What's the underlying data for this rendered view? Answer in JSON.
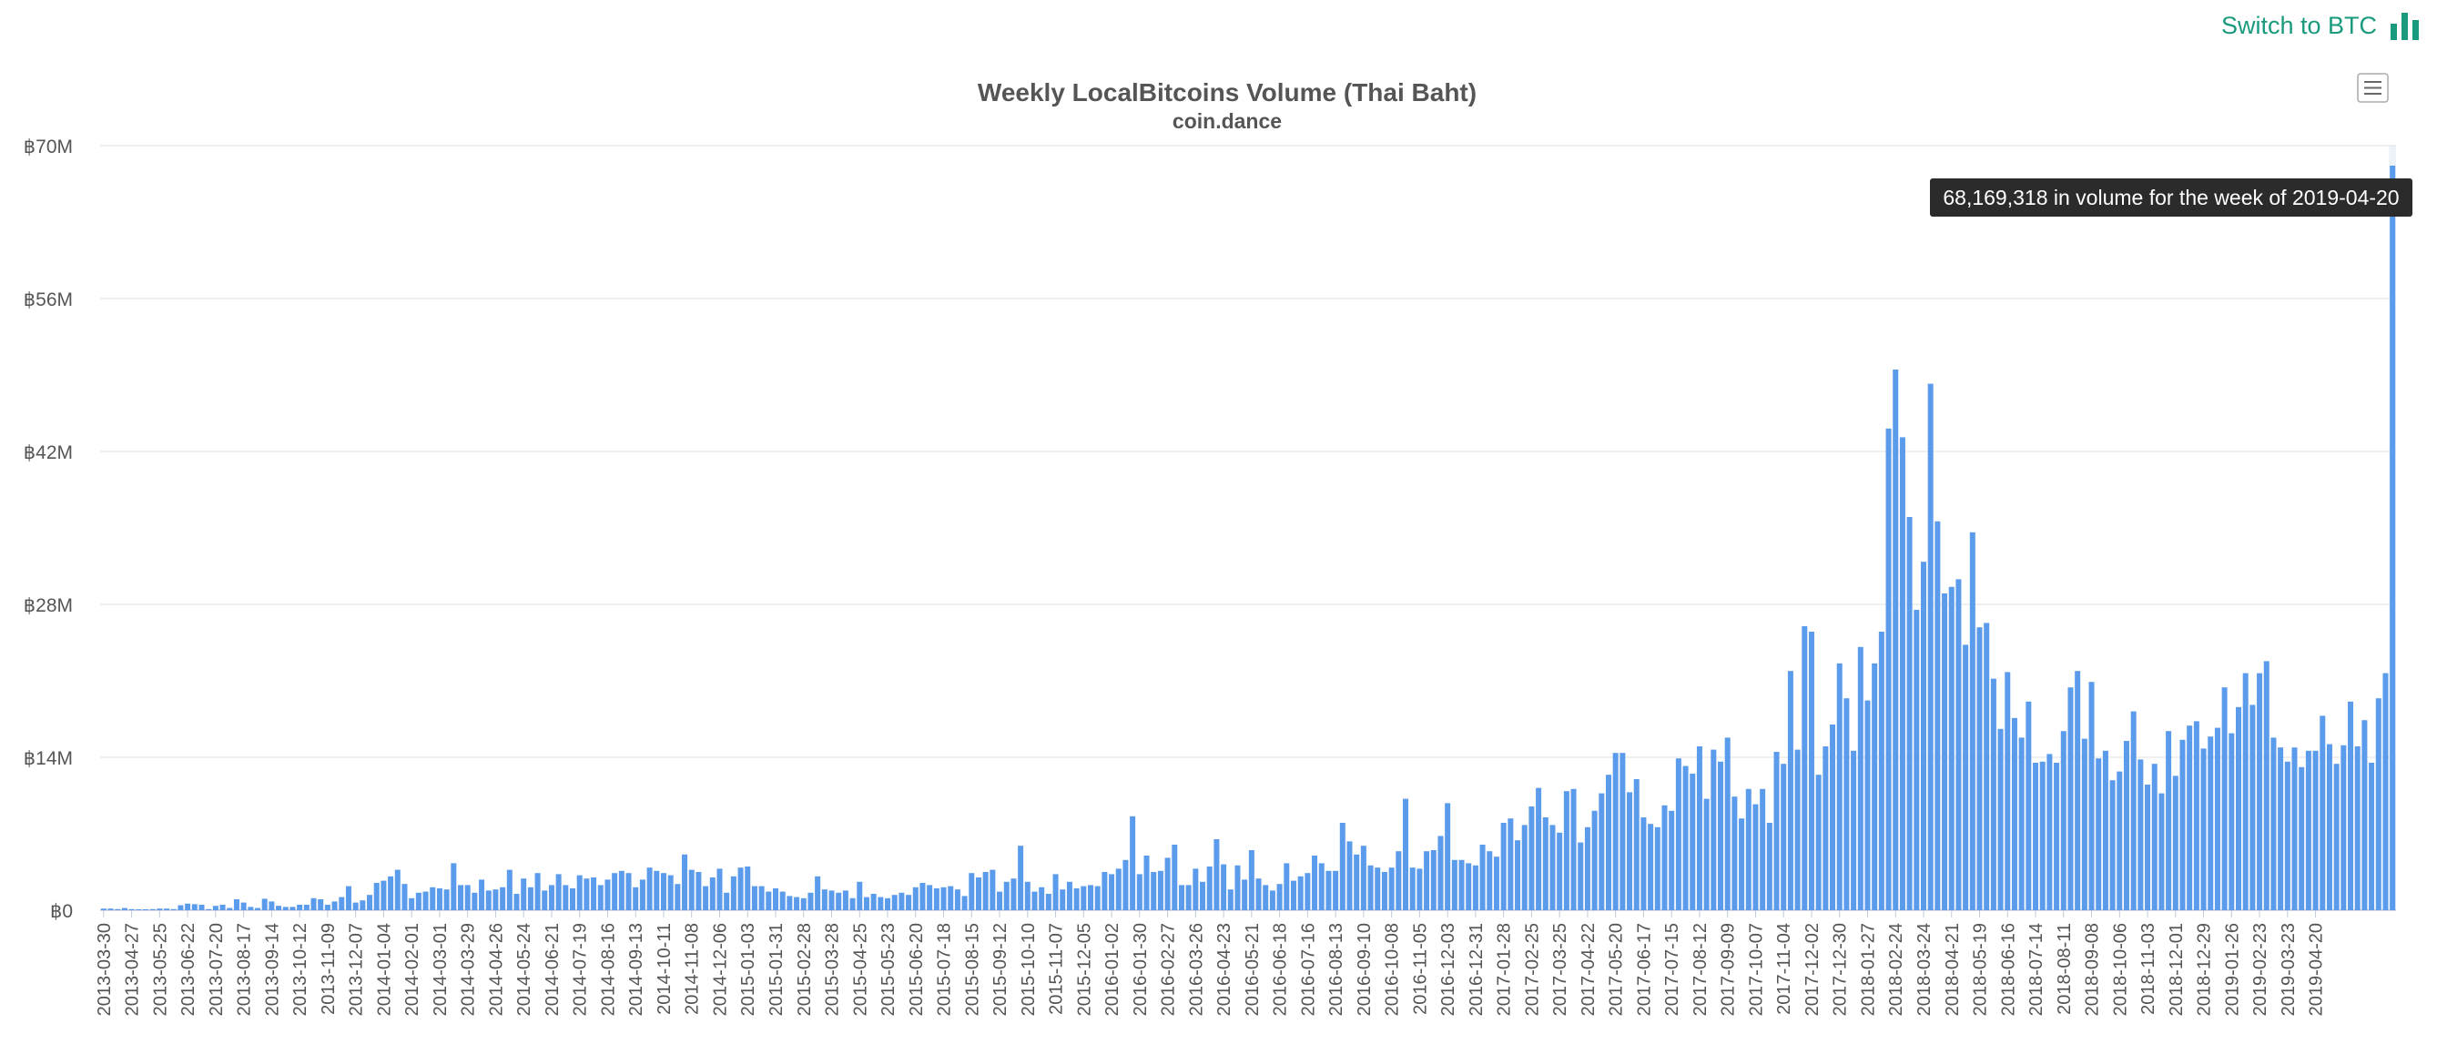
{
  "switch_label": "Switch to BTC",
  "accent_color": "#1a9a7d",
  "bar_color": "#5b9bec",
  "icons": {
    "switch": "bar-chart-icon",
    "menu": "hamburger-menu-icon"
  },
  "tooltip": {
    "text": "68,169,318 in volume for the week of 2019-04-20"
  },
  "chart_data": {
    "type": "bar",
    "title": "Weekly LocalBitcoins Volume (Thai Baht)",
    "subtitle": "coin.dance",
    "ylim": [
      0,
      70000000
    ],
    "yticks": [
      {
        "value": 0,
        "label": "฿0"
      },
      {
        "value": 14000000,
        "label": "฿14M"
      },
      {
        "value": 28000000,
        "label": "฿28M"
      },
      {
        "value": 42000000,
        "label": "฿42M"
      },
      {
        "value": 56000000,
        "label": "฿56M"
      },
      {
        "value": 70000000,
        "label": "฿70M"
      }
    ],
    "grid": true,
    "legend": false,
    "start_week": "2013-03-30",
    "end_week": "2019-04-20",
    "x_tick_labels": [
      "2013-03-30",
      "2013-04-27",
      "2013-05-25",
      "2013-06-22",
      "2013-07-20",
      "2013-08-17",
      "2013-09-14",
      "2013-10-12",
      "2013-11-09",
      "2013-12-07",
      "2014-01-04",
      "2014-02-01",
      "2014-03-01",
      "2014-03-29",
      "2014-04-26",
      "2014-05-24",
      "2014-06-21",
      "2014-07-19",
      "2014-08-16",
      "2014-09-13",
      "2014-10-11",
      "2014-11-08",
      "2014-12-06",
      "2015-01-03",
      "2015-01-31",
      "2015-02-28",
      "2015-03-28",
      "2015-04-25",
      "2015-05-23",
      "2015-06-20",
      "2015-07-18",
      "2015-08-15",
      "2015-09-12",
      "2015-10-10",
      "2015-11-07",
      "2015-12-05",
      "2016-01-02",
      "2016-01-30",
      "2016-02-27",
      "2016-03-26",
      "2016-04-23",
      "2016-05-21",
      "2016-06-18",
      "2016-07-16",
      "2016-08-13",
      "2016-09-10",
      "2016-10-08",
      "2016-11-05",
      "2016-12-03",
      "2016-12-31",
      "2017-01-28",
      "2017-02-25",
      "2017-03-25",
      "2017-04-22",
      "2017-05-20",
      "2017-06-17",
      "2017-07-15",
      "2017-08-12",
      "2017-09-09",
      "2017-10-07",
      "2017-11-04",
      "2017-12-02",
      "2017-12-30",
      "2018-01-27",
      "2018-02-24",
      "2018-03-24",
      "2018-04-21",
      "2018-05-19",
      "2018-06-16",
      "2018-07-14",
      "2018-08-11",
      "2018-09-08",
      "2018-10-06",
      "2018-11-03",
      "2018-12-01",
      "2018-12-29",
      "2019-01-26",
      "2019-02-23",
      "2019-03-23",
      "2019-04-20"
    ],
    "values": [
      150000,
      150000,
      100000,
      200000,
      100000,
      50000,
      50000,
      100000,
      150000,
      150000,
      100000,
      450000,
      600000,
      550000,
      500000,
      100000,
      400000,
      500000,
      200000,
      1000000,
      700000,
      300000,
      200000,
      1050000,
      800000,
      400000,
      300000,
      300000,
      500000,
      500000,
      1100000,
      1000000,
      500000,
      800000,
      1200000,
      2200000,
      700000,
      900000,
      1400000,
      2500000,
      2700000,
      3100000,
      3700000,
      2400000,
      1100000,
      1600000,
      1700000,
      2100000,
      2000000,
      1900000,
      4300000,
      2300000,
      2300000,
      1600000,
      2800000,
      1800000,
      1900000,
      2100000,
      3700000,
      1500000,
      2900000,
      2100000,
      3400000,
      1800000,
      2300000,
      3300000,
      2300000,
      2000000,
      3200000,
      2900000,
      3000000,
      2300000,
      2800000,
      3400000,
      3600000,
      3400000,
      2100000,
      2800000,
      3900000,
      3600000,
      3400000,
      3200000,
      2400000,
      5100000,
      3700000,
      3500000,
      2200000,
      3000000,
      3800000,
      1600000,
      3100000,
      3900000,
      4000000,
      2200000,
      2200000,
      1700000,
      2000000,
      1700000,
      1300000,
      1200000,
      1100000,
      1600000,
      3100000,
      1900000,
      1800000,
      1600000,
      1800000,
      1100000,
      2600000,
      1200000,
      1500000,
      1200000,
      1100000,
      1400000,
      1600000,
      1400000,
      2100000,
      2500000,
      2300000,
      2000000,
      2100000,
      2200000,
      1900000,
      1300000,
      3400000,
      3000000,
      3500000,
      3700000,
      1700000,
      2600000,
      2900000,
      5900000,
      2600000,
      1700000,
      2100000,
      1500000,
      3300000,
      1900000,
      2600000,
      2000000,
      2200000,
      2300000,
      2200000,
      3500000,
      3300000,
      3800000,
      4600000,
      8600000,
      3300000,
      5000000,
      3500000,
      3600000,
      4800000,
      6000000,
      2300000,
      2300000,
      3800000,
      2600000,
      4000000,
      6500000,
      4200000,
      1900000,
      4100000,
      2800000,
      5500000,
      2900000,
      2300000,
      1800000,
      2400000,
      4300000,
      2700000,
      3100000,
      3400000,
      5000000,
      4300000,
      3600000,
      3600000,
      8000000,
      6300000,
      5100000,
      5900000,
      4100000,
      3900000,
      3500000,
      3900000,
      5400000,
      10200000,
      3900000,
      3800000,
      5400000,
      5500000,
      6800000,
      9800000,
      4600000,
      4600000,
      4300000,
      4100000,
      6000000,
      5400000,
      4900000,
      8000000,
      8400000,
      6400000,
      7800000,
      9500000,
      11200000,
      8500000,
      7800000,
      7100000,
      10900000,
      11100000,
      6200000,
      7600000,
      9100000,
      10700000,
      12400000,
      14400000,
      14400000,
      10800000,
      12000000,
      8500000,
      7900000,
      7600000,
      9600000,
      9100000,
      13900000,
      13200000,
      12500000,
      15000000,
      10200000,
      14700000,
      13600000,
      15800000,
      10400000,
      8400000,
      11100000,
      9700000,
      11100000,
      8000000,
      14500000,
      13400000,
      21900000,
      14700000,
      26000000,
      25500000,
      12400000,
      15000000,
      17000000,
      22600000,
      19400000,
      14600000,
      24100000,
      19200000,
      22600000,
      25500000,
      44100000,
      49500000,
      43300000,
      36000000,
      27500000,
      31900000,
      48200000,
      35600000,
      29000000,
      29600000,
      30300000,
      24300000,
      34600000,
      25900000,
      26300000,
      21200000,
      16600000,
      21800000,
      17600000,
      15800000,
      19100000,
      13500000,
      13600000,
      14300000,
      13500000,
      16400000,
      20400000,
      21900000,
      15700000,
      20900000,
      13900000,
      14600000,
      11900000,
      12700000,
      15500000,
      18200000,
      13800000,
      11500000,
      13400000,
      10700000,
      16400000,
      12300000,
      15600000,
      16900000,
      17300000,
      14800000,
      15900000,
      16700000,
      20400000,
      16200000,
      18600000,
      21700000,
      18800000,
      21700000,
      22800000,
      15800000,
      14900000,
      13600000,
      14900000,
      13100000,
      14600000,
      14600000,
      17800000,
      15200000,
      13400000,
      15100000,
      19100000,
      15000000,
      17400000,
      13500000,
      19400000,
      21700000,
      68169318
    ]
  }
}
